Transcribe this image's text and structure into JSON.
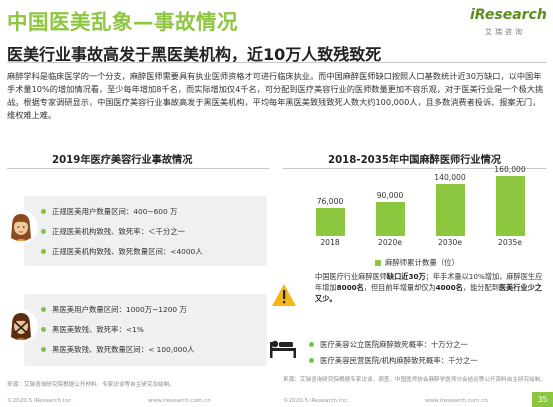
{
  "header": {
    "title": "中国医美乱象—事故情况",
    "subtitle": "医美行业事故高发于黑医美机构，近10万人致残致死",
    "logo_word": "iResearch",
    "logo_cn": "艾瑞咨询"
  },
  "intro": {
    "text": "麻醉学科是临床医学的一个分支，麻醉医师需要具有执业医师资格才可进行临床执业。而中国麻醉医师缺口按照人口基数统计近30万缺口，以中国年手术量10%的增加情况看，至少每年增加8千名，而实际增加仅4千名，可分配到医疗美容行业的医师数量更加不容乐观，对于医美行业是一个极大挑战。根据专家调研显示，中国医疗美容行业事故高发于黑医美机构，平均每年黑医美致残致死人数大约100,000人，且多数消费者投诉、报案无门，维权难上难。"
  },
  "left": {
    "title": "2019年医疗美容行业事故情况",
    "legit_panel": [
      "正规医美用户数量区间：400~600 万",
      "正规医美机构致残、致死率：＜千分之一",
      "正规医美机构致残、致死数量区间：<4000人"
    ],
    "illegal_panel": [
      "黑医美用户数量区间：1000万~1200 万",
      "黑医美致残、致死率：<1%",
      "黑医美致残、致死数量区间：< 100,000人"
    ],
    "source": "来源：艾瑞咨询研究院根据公开材料、专家访谈等自主研究及绘制。"
  },
  "right": {
    "title": "2018-2035年中国麻醉医师行业情况",
    "note": "中国医疗行业麻醉医师缺口近30万；年手术量以10%增加，麻醉医生应年增加8000名，但目前年增量却仅为4000名，能分配到医美行业少之又少。",
    "note_bold_1": "缺口近30万",
    "note_bold_2": "8000名",
    "note_bold_3": "4000名",
    "note_bold_4": "医美行业少之又少。",
    "death_rates": [
      "医疗美容公立医院麻醉致死概率：十万分之一",
      "医疗美容民营医院/机构麻醉致死概率：千分之一"
    ],
    "source": "来源：艾瑞咨询研究院根据专家访谈、调查、中国医师协会麻醉学医师分会结论等公开资料自主研究绘制。"
  },
  "footer": {
    "left": "©2020.5 iResearch Inc.",
    "mid": "www.iresearch.com.cn",
    "right_left": "©2020.5 iResearch Inc.",
    "right_mid": "www.iresearch.com.cn",
    "page": "35"
  },
  "chart_data": {
    "type": "bar",
    "title": "2018-2035年中国麻醉医师行业情况",
    "categories": [
      "2018",
      "2020e",
      "2030e",
      "2035e"
    ],
    "series": [
      {
        "name": "麻醉师累计数量（位）",
        "values": [
          76000,
          90000,
          140000,
          160000
        ]
      }
    ],
    "value_labels": [
      "76,000",
      "90,000",
      "140,000",
      "160,000"
    ],
    "ylim": [
      0,
      180000
    ],
    "grid": false,
    "legend": "bottom",
    "color": "#8dc63f"
  },
  "colors": {
    "accent": "#8dc63f",
    "bullet": "#7cc243",
    "panel": "#f0f0f0"
  }
}
